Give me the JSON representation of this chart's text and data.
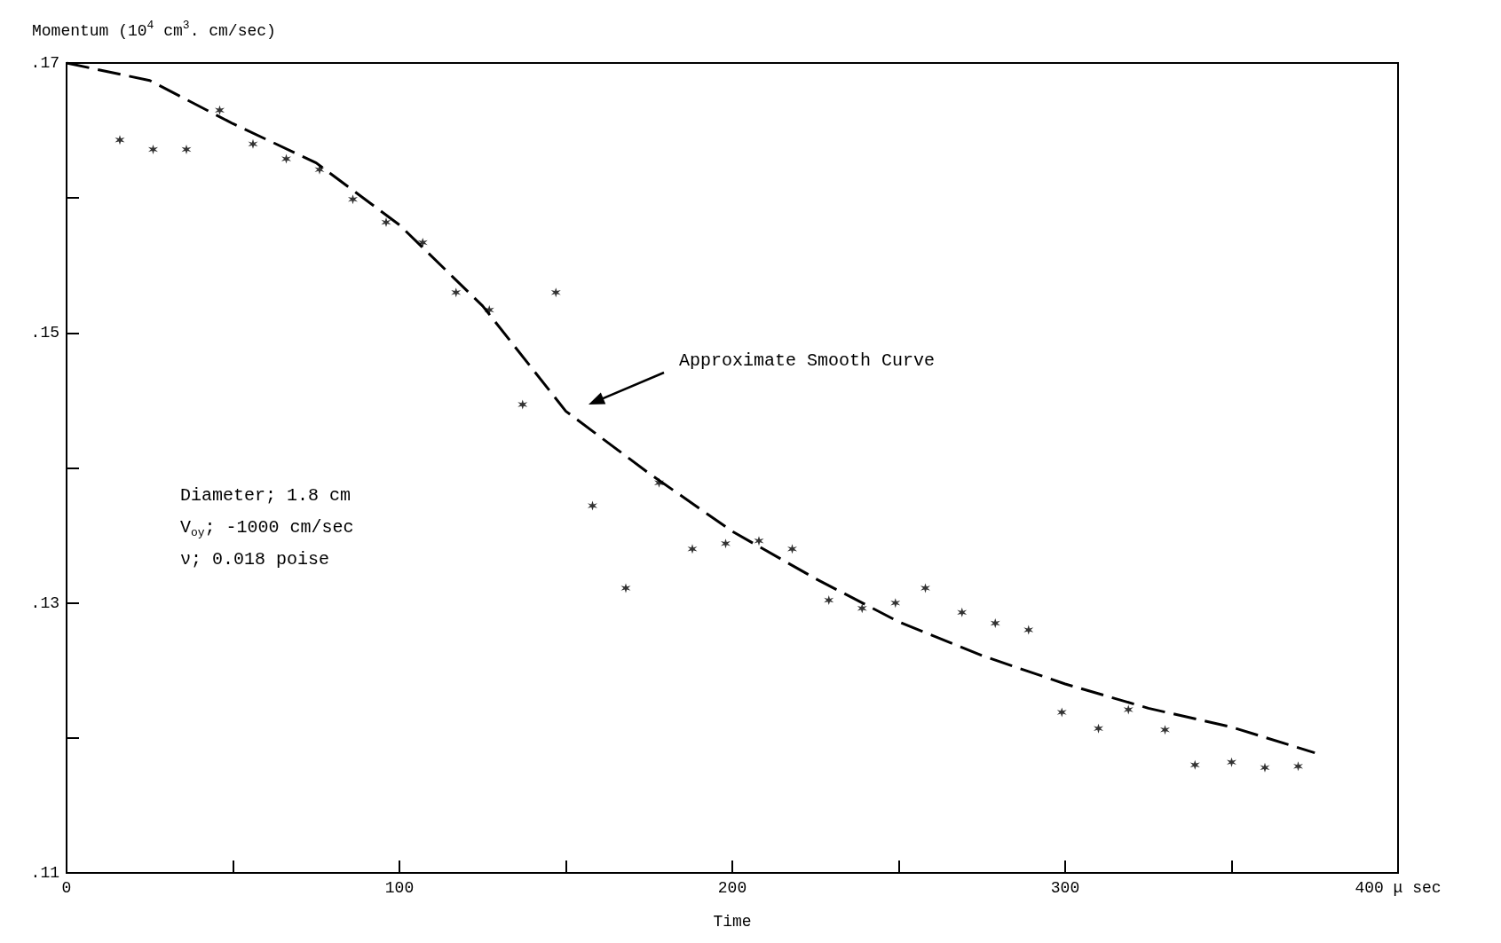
{
  "chart_data": {
    "type": "scatter",
    "xlabel": "Time",
    "ylabel": "Momentum (10$^{4}$ cm$^{3}$. cm/sec)",
    "xlim": [
      0,
      400
    ],
    "xticks": [
      0,
      {
        "value": 50,
        "label": null
      },
      100,
      {
        "value": 150,
        "label": null
      },
      200,
      {
        "value": 250,
        "label": null
      },
      300,
      {
        "value": 350,
        "label": null
      },
      {
        "value": 400,
        "label": "400 μ sec"
      }
    ],
    "ylim": [
      0.11,
      0.17
    ],
    "yticks": [
      {
        "value": 0.11,
        "label": ".11"
      },
      {
        "value": 0.12,
        "label": null
      },
      {
        "value": 0.13,
        "label": ".13"
      },
      {
        "value": 0.14,
        "label": null
      },
      {
        "value": 0.15,
        "label": ".15"
      },
      {
        "value": 0.16,
        "label": null
      },
      {
        "value": 0.17,
        "label": ".17"
      }
    ],
    "series": [
      {
        "type": "scatter",
        "color": "#000000",
        "marker": "cross",
        "x": [
          16,
          26,
          36,
          46,
          56,
          66,
          76,
          86,
          96,
          107,
          117,
          127,
          137,
          147,
          158,
          168,
          178,
          188,
          198,
          208,
          218,
          229,
          239,
          249,
          258,
          269,
          279,
          289,
          299,
          310,
          319,
          330,
          339,
          350,
          360,
          370
        ],
        "values": [
          0.1643,
          0.1636,
          0.1636,
          0.1665,
          0.164,
          0.1629,
          0.1621,
          0.1599,
          0.1582,
          0.1567,
          0.153,
          0.1517,
          0.1447,
          0.153,
          0.1372,
          0.1311,
          0.1389,
          0.134,
          0.1344,
          0.1346,
          0.134,
          0.1302,
          0.1296,
          0.13,
          0.1311,
          0.1293,
          0.1285,
          0.128,
          0.1219,
          0.1207,
          0.1221,
          0.1206,
          0.118,
          0.1182,
          0.1178,
          0.1179
        ]
      },
      {
        "type": "line",
        "color": "#000000",
        "line_style": "dashed",
        "marker": "none",
        "x": [
          0,
          25,
          50,
          75,
          100,
          125,
          150,
          175,
          200,
          225,
          250,
          275,
          300,
          325,
          350,
          375
        ],
        "values": [
          0.17,
          0.1687,
          0.1655,
          0.1626,
          0.158,
          0.152,
          0.1442,
          0.1396,
          0.1353,
          0.1318,
          0.1286,
          0.1261,
          0.124,
          0.1222,
          0.1208,
          0.1189
        ]
      }
    ],
    "annotations": [
      "Approximate Smooth Curve",
      "Diameter; 1.8 cm",
      "V$_{oy}$; -1000 cm/sec",
      "ν; 0.018 poise"
    ]
  }
}
